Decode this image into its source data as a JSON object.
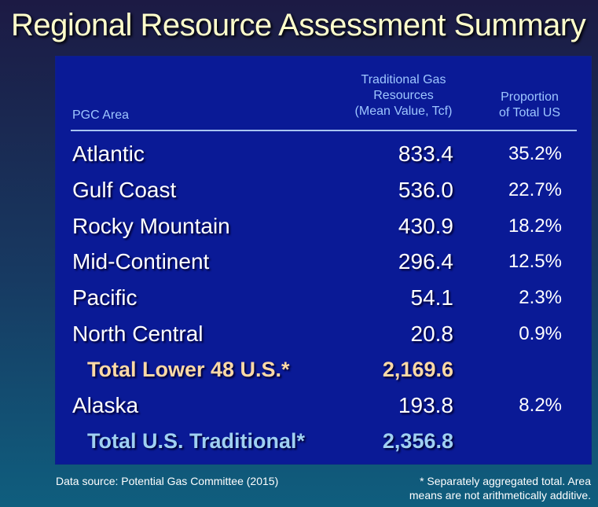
{
  "title": "Regional Resource Assessment Summary",
  "table": {
    "headers": {
      "area": "PGC Area",
      "resources": [
        "Traditional Gas",
        "Resources",
        "(Mean Value, Tcf)"
      ],
      "proportion": [
        "Proportion",
        "of Total US"
      ]
    },
    "rows": [
      {
        "name": "Atlantic",
        "value": "833.4",
        "pct": "35.2%"
      },
      {
        "name": "Gulf Coast",
        "value": "536.0",
        "pct": "22.7%"
      },
      {
        "name": "Rocky Mountain",
        "value": "430.9",
        "pct": "18.2%"
      },
      {
        "name": "Mid-Continent",
        "value": "296.4",
        "pct": "12.5%"
      },
      {
        "name": "Pacific",
        "value": "54.1",
        "pct": "2.3%"
      },
      {
        "name": "North Central",
        "value": "20.8",
        "pct": "0.9%"
      },
      {
        "name": "Total Lower 48 U.S.*",
        "value": "2,169.6",
        "pct": ""
      },
      {
        "name": "Alaska",
        "value": "193.8",
        "pct": "8.2%"
      },
      {
        "name": "Total U.S. Traditional*",
        "value": "2,356.8",
        "pct": ""
      }
    ]
  },
  "footer": {
    "source": "Data source: Potential Gas Committee (2015)",
    "note_lines": [
      "* Separately aggregated total. Area",
      "means are not arithmetically additive."
    ]
  },
  "colors": {
    "title": "#ffffcc",
    "panel": "#0a1a96",
    "header_text": "#9ec6ff",
    "total_lower48": "#fcd9a6",
    "total_us": "#9fd0f2"
  }
}
